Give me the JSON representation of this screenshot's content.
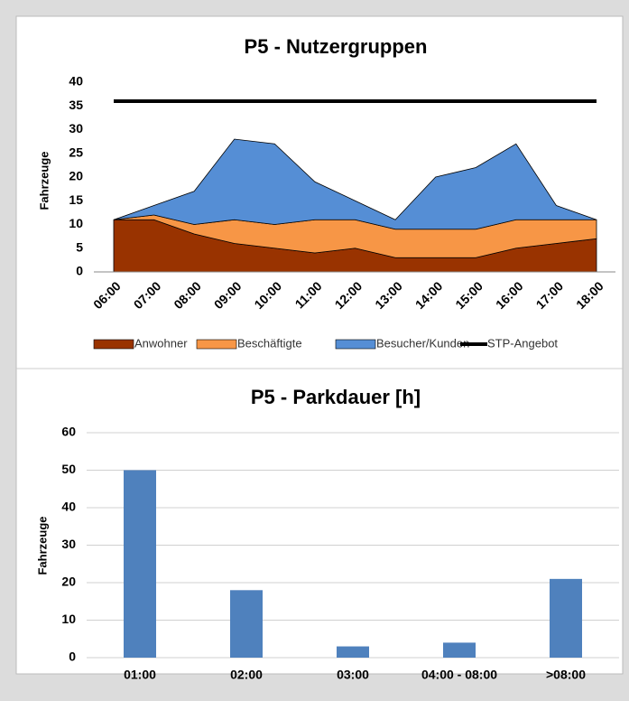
{
  "chart_data": [
    {
      "type": "stacked_area",
      "title": "P5 - Nutzergruppen",
      "y_label": "Fahrzeuge",
      "categories": [
        "06:00",
        "07:00",
        "08:00",
        "09:00",
        "10:00",
        "11:00",
        "12:00",
        "13:00",
        "14:00",
        "15:00",
        "16:00",
        "17:00",
        "18:00"
      ],
      "series": [
        {
          "name": "Anwohner",
          "color": "#993300",
          "values": [
            11,
            11,
            8,
            6,
            5,
            4,
            5,
            3,
            3,
            3,
            5,
            6,
            7
          ]
        },
        {
          "name": "Beschäftigte",
          "color": "#f79646",
          "values": [
            0,
            1,
            2,
            5,
            5,
            7,
            6,
            6,
            6,
            6,
            6,
            5,
            4
          ]
        },
        {
          "name": "Besucher/Kunden",
          "color": "#558ed5",
          "values": [
            0,
            2,
            7,
            17,
            17,
            8,
            4,
            2,
            11,
            13,
            16,
            3,
            0
          ]
        },
        {
          "name": "STP-Angebot",
          "color": "#000000",
          "type": "line",
          "values": [
            36,
            36,
            36,
            36,
            36,
            36,
            36,
            36,
            36,
            36,
            36,
            36,
            36
          ]
        }
      ],
      "ylim": [
        0,
        40
      ],
      "yticks": [
        0,
        5,
        10,
        15,
        20,
        25,
        30,
        35,
        40
      ],
      "grid": false,
      "legend": "bottom"
    },
    {
      "type": "bar",
      "title": "P5 - Parkdauer [h]",
      "y_label": "Fahrzeuge",
      "categories": [
        "01:00",
        "02:00",
        "03:00",
        "04:00 - 08:00",
        ">08:00"
      ],
      "values": [
        50,
        18,
        3,
        4,
        21
      ],
      "color": "#4f81bd",
      "ylim": [
        0,
        60
      ],
      "yticks": [
        0,
        10,
        20,
        30,
        40,
        50,
        60
      ],
      "grid": true
    }
  ]
}
